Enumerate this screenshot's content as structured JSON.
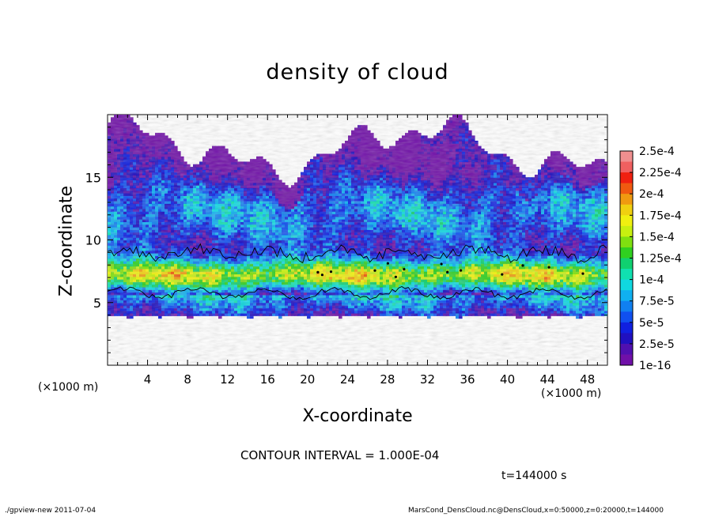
{
  "chart_data": {
    "type": "heatmap",
    "title": "density of cloud",
    "xlabel": "X-coordinate",
    "ylabel": "Z-coordinate",
    "x_unit": "(×1000 m)",
    "x_unit_secondary": "(×1000 m)",
    "xlim": [
      0,
      50
    ],
    "ylim": [
      0,
      20
    ],
    "x_ticks": [
      "4",
      "8",
      "12",
      "16",
      "20",
      "24",
      "28",
      "32",
      "36",
      "40",
      "44",
      "48"
    ],
    "y_ticks": [
      "5",
      "10",
      "15"
    ],
    "colorbar": {
      "labels": [
        "2.5e-4",
        "2.25e-4",
        "2e-4",
        "1.75e-4",
        "1.5e-4",
        "1.25e-4",
        "1e-4",
        "7.5e-5",
        "5e-5",
        "2.5e-5",
        "1e-16"
      ],
      "colors": [
        "#f08f8f",
        "#f06060",
        "#f02010",
        "#f05a10",
        "#f09a10",
        "#f0d010",
        "#f0f010",
        "#c8f010",
        "#80e010",
        "#30d020",
        "#10d070",
        "#10e0b0",
        "#10d8e0",
        "#10b0f0",
        "#1080f0",
        "#1050f0",
        "#1020e0",
        "#2010c0",
        "#5010b0",
        "#7010a8"
      ]
    },
    "contour_levels": [
      0.0001
    ],
    "profile_note": "Cloud layer spans z≈4–19 (×1000 m); density peak ≈1.5e-4–2e-4 near z≈7; contour at 1e-4 bounds z≈5.5–9",
    "contour_interval": "CONTOUR INTERVAL = 1.000E-04",
    "time": "t=144000 s"
  },
  "footer": {
    "left": "./gpview-new   2011-07-04",
    "right": "MarsCond_DensCloud.nc@DensCloud,x=0:50000,z=0:20000,t=144000"
  }
}
